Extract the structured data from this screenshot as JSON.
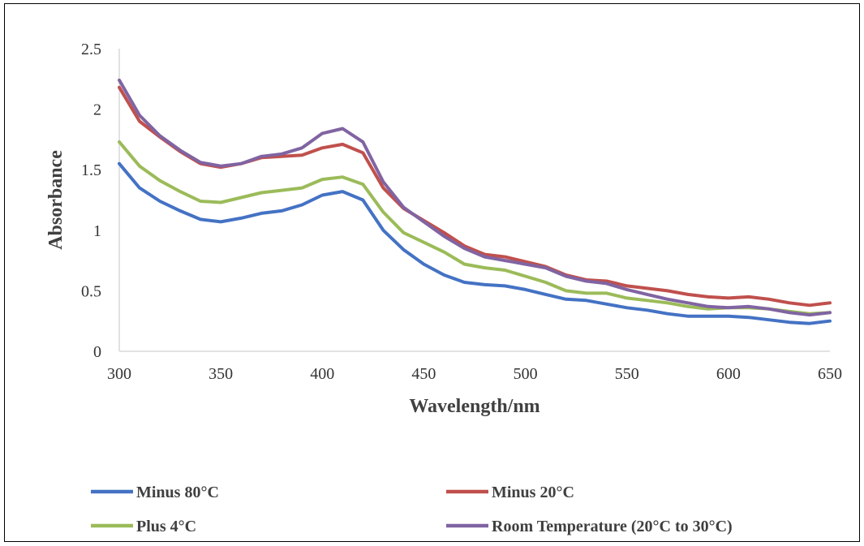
{
  "chart_data": {
    "type": "line",
    "title": "",
    "xlabel": "Wavelength/nm",
    "ylabel": "Absorbance",
    "xlim": [
      300,
      650
    ],
    "ylim": [
      0,
      2.5
    ],
    "x_ticks": [
      "300",
      "350",
      "400",
      "450",
      "500",
      "550",
      "600",
      "650"
    ],
    "y_ticks": [
      "0",
      "0.5",
      "1",
      "1.5",
      "2",
      "2.5"
    ],
    "grid": false,
    "legend_position": "bottom",
    "x": [
      300,
      310,
      320,
      330,
      340,
      350,
      360,
      370,
      380,
      390,
      400,
      410,
      420,
      430,
      440,
      450,
      460,
      470,
      480,
      490,
      500,
      510,
      520,
      530,
      540,
      550,
      560,
      570,
      580,
      590,
      600,
      610,
      620,
      630,
      640,
      650
    ],
    "series": [
      {
        "name": "Minus 80°C",
        "color": "#4472C4",
        "values": [
          1.55,
          1.35,
          1.24,
          1.16,
          1.09,
          1.07,
          1.1,
          1.14,
          1.16,
          1.21,
          1.29,
          1.32,
          1.25,
          1.0,
          0.84,
          0.72,
          0.63,
          0.57,
          0.55,
          0.54,
          0.51,
          0.47,
          0.43,
          0.42,
          0.39,
          0.36,
          0.34,
          0.31,
          0.29,
          0.29,
          0.29,
          0.28,
          0.26,
          0.24,
          0.23,
          0.25
        ]
      },
      {
        "name": "Minus 20°C",
        "color": "#C0504D",
        "values": [
          2.18,
          1.9,
          1.77,
          1.65,
          1.55,
          1.52,
          1.55,
          1.6,
          1.61,
          1.62,
          1.68,
          1.71,
          1.64,
          1.35,
          1.18,
          1.08,
          0.98,
          0.87,
          0.8,
          0.78,
          0.74,
          0.7,
          0.63,
          0.59,
          0.58,
          0.54,
          0.52,
          0.5,
          0.47,
          0.45,
          0.44,
          0.45,
          0.43,
          0.4,
          0.38,
          0.4
        ]
      },
      {
        "name": "Plus 4°C",
        "color": "#9BBB59",
        "values": [
          1.73,
          1.53,
          1.41,
          1.32,
          1.24,
          1.23,
          1.27,
          1.31,
          1.33,
          1.35,
          1.42,
          1.44,
          1.38,
          1.15,
          0.98,
          0.9,
          0.82,
          0.72,
          0.69,
          0.67,
          0.62,
          0.57,
          0.5,
          0.48,
          0.48,
          0.44,
          0.42,
          0.4,
          0.37,
          0.35,
          0.36,
          0.36,
          0.35,
          0.33,
          0.31,
          0.32
        ]
      },
      {
        "name": "Room Temperature (20°C to 30°C)",
        "color": "#8064A2",
        "values": [
          2.24,
          1.95,
          1.78,
          1.66,
          1.56,
          1.53,
          1.55,
          1.61,
          1.63,
          1.68,
          1.8,
          1.84,
          1.73,
          1.4,
          1.19,
          1.07,
          0.95,
          0.85,
          0.78,
          0.75,
          0.72,
          0.69,
          0.62,
          0.58,
          0.56,
          0.51,
          0.47,
          0.43,
          0.4,
          0.37,
          0.36,
          0.37,
          0.35,
          0.32,
          0.3,
          0.32
        ]
      }
    ]
  }
}
